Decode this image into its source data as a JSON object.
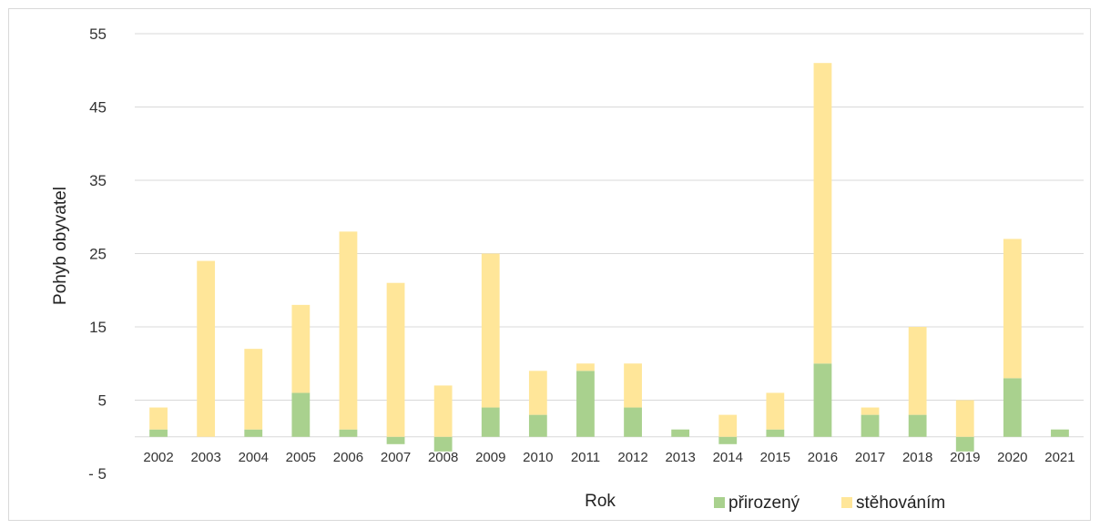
{
  "chart_data": {
    "type": "bar",
    "stacked": true,
    "title": "",
    "xlabel": "Rok",
    "ylabel": "Pohyb obyvatel",
    "ylim": [
      -5,
      55
    ],
    "yticks": [
      -5,
      5,
      15,
      25,
      35,
      45,
      55
    ],
    "ytick_labels": [
      "- 5",
      "5",
      "15",
      "25",
      "35",
      "45",
      "55"
    ],
    "grid": true,
    "legend_position": "bottom",
    "categories": [
      "2002",
      "2003",
      "2004",
      "2005",
      "2006",
      "2007",
      "2008",
      "2009",
      "2010",
      "2011",
      "2012",
      "2013",
      "2014",
      "2015",
      "2016",
      "2017",
      "2018",
      "2019",
      "2020",
      "2021"
    ],
    "series": [
      {
        "name": "přirozený",
        "color": "#a9d18e",
        "values": [
          1,
          0,
          1,
          6,
          1,
          -1,
          -2,
          4,
          3,
          9,
          4,
          1,
          -1,
          1,
          10,
          3,
          3,
          -2,
          8,
          1
        ]
      },
      {
        "name": "stěhováním",
        "color": "#ffe699",
        "values": [
          3,
          24,
          11,
          12,
          27,
          21,
          7,
          21,
          6,
          1,
          6,
          0,
          3,
          5,
          41,
          1,
          12,
          5,
          19,
          0
        ]
      }
    ]
  }
}
